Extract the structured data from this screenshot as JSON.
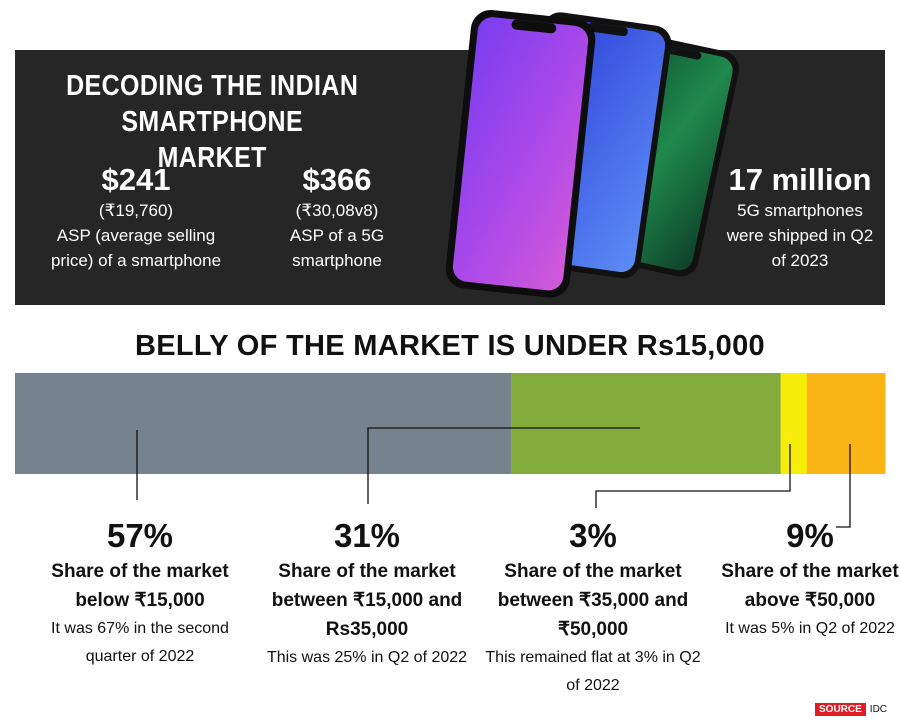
{
  "header": {
    "title": "DECODING THE INDIAN SMARTPHONE MARKET",
    "stats": [
      {
        "value": "$241",
        "rupee": "(₹19,760)",
        "desc": "ASP (average selling price) of a smartphone"
      },
      {
        "value": "$366",
        "rupee": "(₹30,08v8)",
        "desc": "ASP of a 5G smartphone"
      },
      {
        "value": "17 million",
        "rupee": "",
        "desc": "5G smartphones were shipped in Q2 of 2023"
      }
    ]
  },
  "chart_data": {
    "type": "bar",
    "orientation": "horizontal-stacked",
    "title": "BELLY OF THE MARKET IS UNDER Rs15,000",
    "categories": [
      "below ₹15,000",
      "₹15,000 - Rs35,000",
      "₹35,000 - ₹50,000",
      "above ₹50,000"
    ],
    "values": [
      57,
      31,
      3,
      9
    ],
    "colors": [
      "#74838d",
      "#83ac3d",
      "#f6ee0a",
      "#fbb516"
    ],
    "labels": [
      {
        "pct": "57%",
        "label": "Share of the market below ₹15,000",
        "note": "It was 67% in the second quarter of 2022"
      },
      {
        "pct": "31%",
        "label": "Share of the market between ₹15,000 and Rs35,000",
        "note": "This was 25% in Q2 of 2022"
      },
      {
        "pct": "3%",
        "label": "Share of the market between ₹35,000 and ₹50,000",
        "note": "This remained flat at 3% in Q2 of 2022"
      },
      {
        "pct": "9%",
        "label": "Share of the market above ₹50,000",
        "note": "It was 5% in Q2 of 2022"
      }
    ]
  },
  "source": {
    "tag": "SOURCE",
    "name": "IDC"
  }
}
